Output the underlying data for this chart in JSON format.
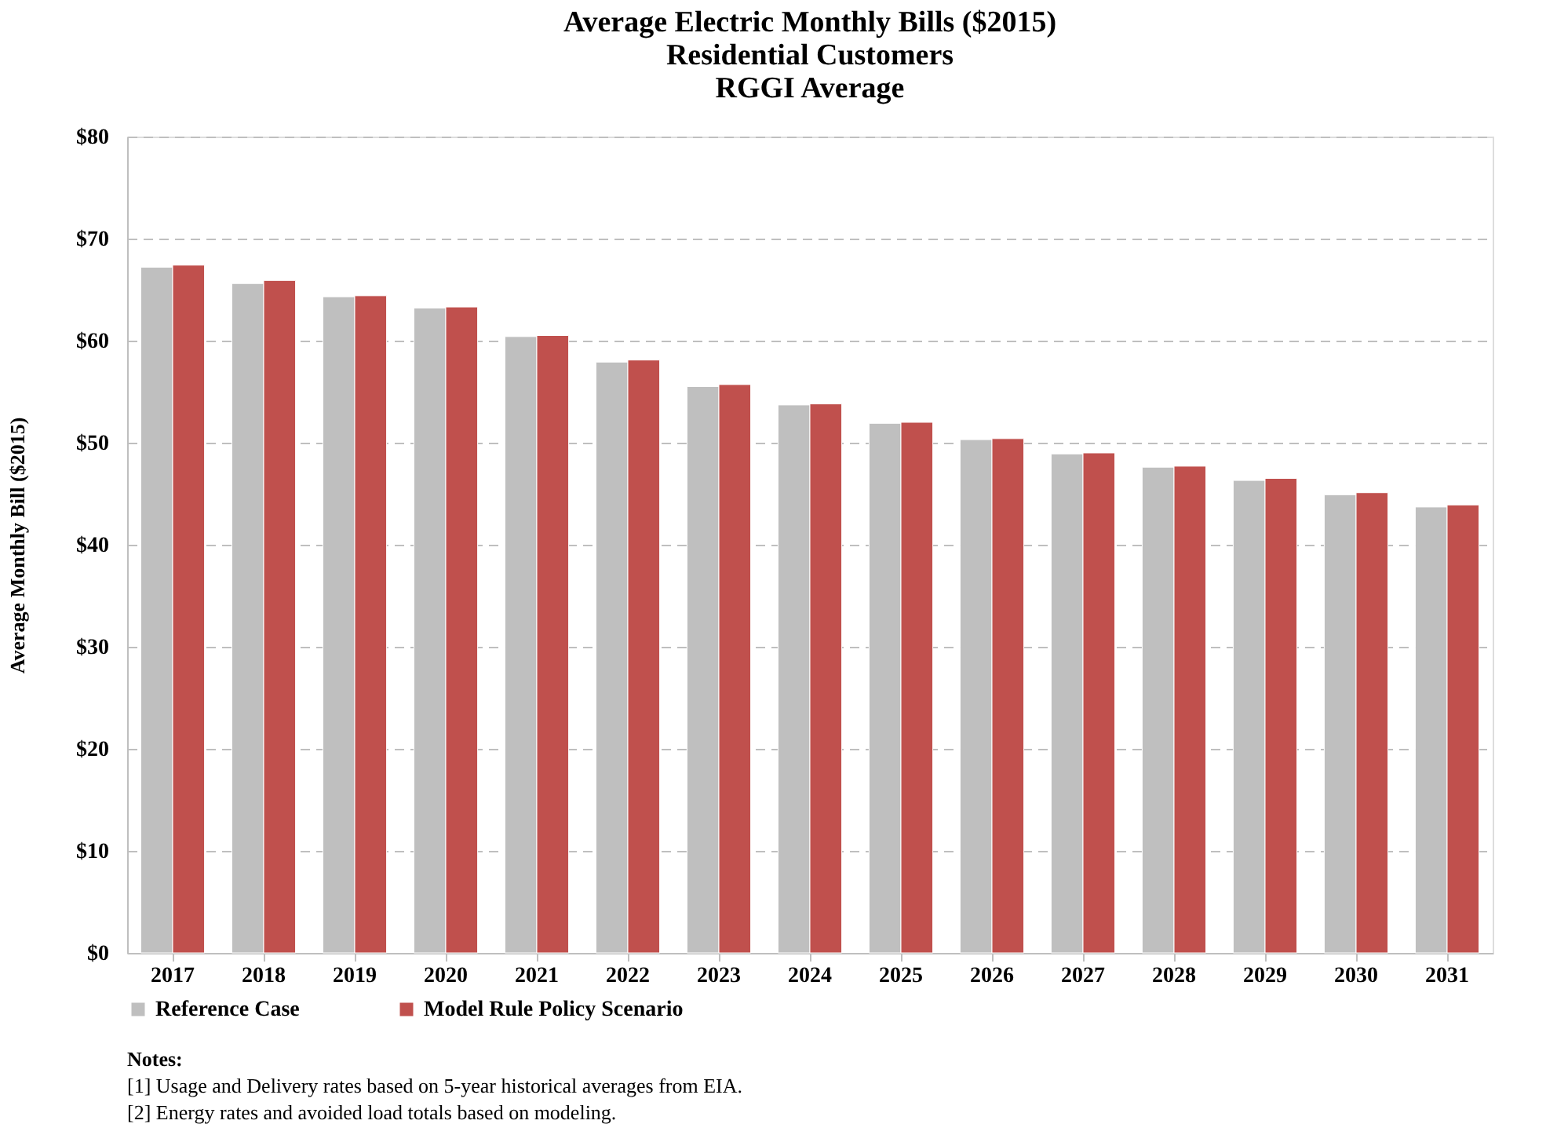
{
  "chart_data": {
    "type": "bar",
    "title": [
      "Average Electric Monthly Bills ($2015)",
      "Residential Customers",
      "RGGI Average"
    ],
    "ylabel": "Average Monthly Bill ($2015)",
    "categories": [
      "2017",
      "2018",
      "2019",
      "2020",
      "2021",
      "2022",
      "2023",
      "2024",
      "2025",
      "2026",
      "2027",
      "2028",
      "2029",
      "2030",
      "2031"
    ],
    "series": [
      {
        "name": "Reference Case",
        "color": "#bfbfbf",
        "values": [
          67.2,
          65.6,
          64.3,
          63.2,
          60.4,
          57.9,
          55.5,
          53.7,
          51.9,
          50.3,
          48.9,
          47.6,
          46.3,
          44.9,
          43.7
        ]
      },
      {
        "name": "Model Rule Policy Scenario",
        "color": "#c0504d",
        "values": [
          67.4,
          65.9,
          64.4,
          63.3,
          60.5,
          58.1,
          55.7,
          53.8,
          52.0,
          50.4,
          49.0,
          47.7,
          46.5,
          45.1,
          43.9
        ]
      }
    ],
    "ylim": [
      0,
      80
    ],
    "yticks": [
      {
        "value": 0,
        "label": "$0"
      },
      {
        "value": 10,
        "label": "$10"
      },
      {
        "value": 20,
        "label": "$20"
      },
      {
        "value": 30,
        "label": "$30"
      },
      {
        "value": 40,
        "label": "$40"
      },
      {
        "value": 50,
        "label": "$50"
      },
      {
        "value": 60,
        "label": "$60"
      },
      {
        "value": 70,
        "label": "$70"
      },
      {
        "value": 80,
        "label": "$80"
      }
    ],
    "grid": "y",
    "legend": "bottom",
    "annotations": [
      "Notes:",
      "[1] Usage and Delivery rates based on 5-year historical averages from EIA.",
      "[2] Energy rates and avoided load totals based on modeling."
    ]
  }
}
